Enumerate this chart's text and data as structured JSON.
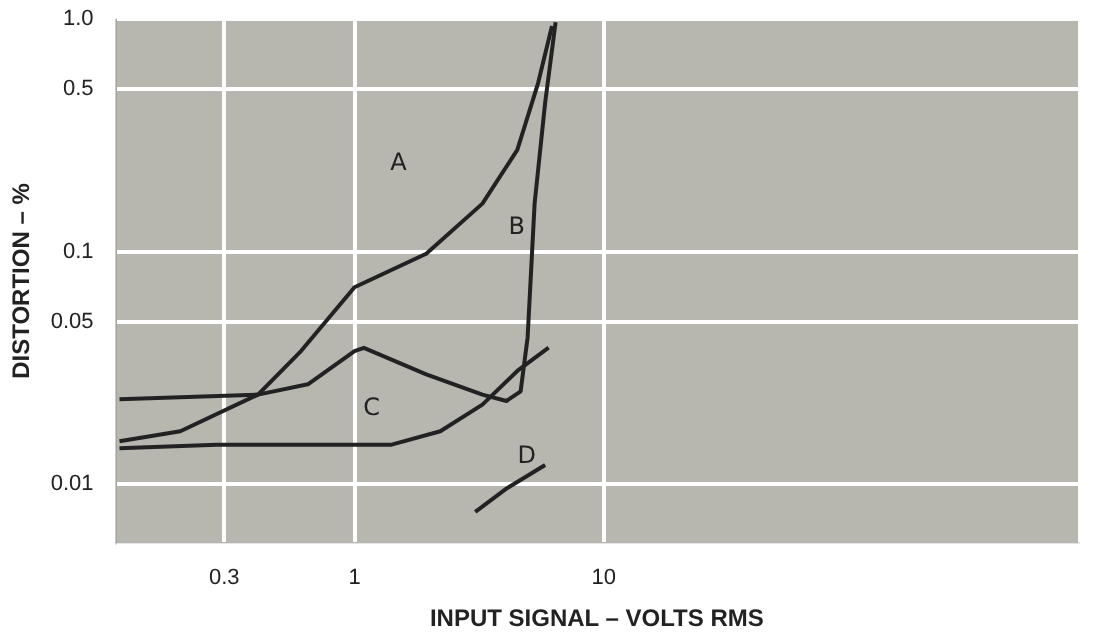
{
  "chart_data": {
    "type": "line",
    "xlabel": "INPUT SIGNAL – VOLTS RMS",
    "ylabel": "DISTORTION – %",
    "log": "xy",
    "grid": true,
    "legend": false,
    "marker": "none",
    "line_style": "solid",
    "xlim": [
      0.11,
      800
    ],
    "ylim": [
      0.0056,
      1
    ],
    "xticks": [
      0.3,
      1,
      10
    ],
    "yticks": [
      0.01,
      0.05,
      0.1,
      0.5,
      {
        "value": 1,
        "label": "1.0"
      }
    ],
    "series": [
      {
        "name": "A",
        "color": "#222222",
        "x": [
          0.114,
          0.2,
          0.41,
          0.61,
          1,
          1.94,
          3.26,
          4.5,
          5.45,
          6.2
        ],
        "values": [
          0.0153,
          0.0169,
          0.0243,
          0.0374,
          0.0703,
          0.098,
          0.161,
          0.274,
          0.53,
          0.935
        ]
      },
      {
        "name": "B",
        "color": "#222222",
        "x": [
          0.114,
          0.41,
          0.65,
          1,
          1.09,
          1.94,
          3.26,
          4.07,
          4.64,
          4.95,
          5.28,
          5.82,
          6.41
        ],
        "values": [
          0.0232,
          0.0243,
          0.0269,
          0.0374,
          0.0386,
          0.0297,
          0.0243,
          0.0228,
          0.0251,
          0.0428,
          0.161,
          0.437,
          0.97
        ]
      },
      {
        "name": "C",
        "color": "#222222",
        "x": [
          0.114,
          0.28,
          0.74,
          1.41,
          2.21,
          3.26,
          4.5,
          6.01
        ],
        "values": [
          0.0143,
          0.0148,
          0.0148,
          0.0148,
          0.0169,
          0.022,
          0.0307,
          0.0387
        ]
      },
      {
        "name": "D",
        "color": "#222222",
        "x": [
          3.05,
          4.08,
          5.82
        ],
        "values": [
          0.0076,
          0.0096,
          0.0121
        ]
      }
    ]
  }
}
